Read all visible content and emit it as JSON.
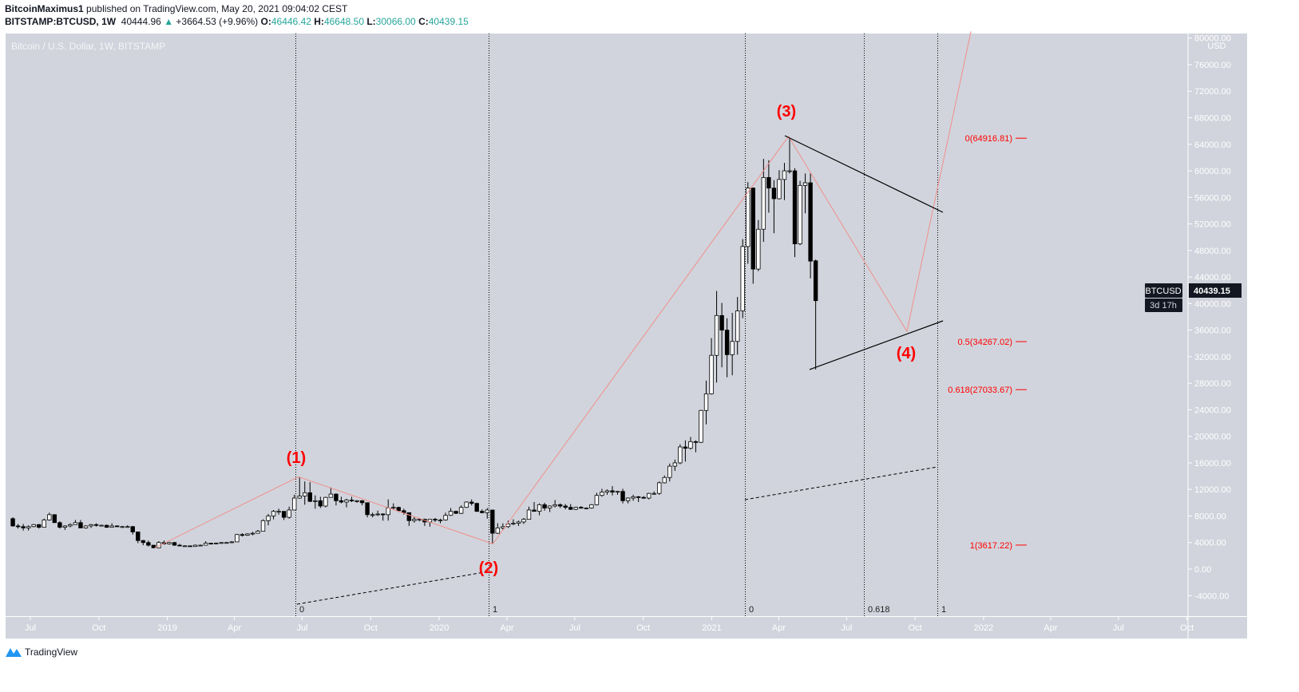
{
  "header": {
    "author": "BitcoinMaximus1",
    "published": "published on TradingView.com, May 20, 2021 09:04:02 CEST",
    "symbol": "BITSTAMP:BTCUSD, 1W",
    "last": "40444.96",
    "change": "+3664.53 (+9.96%)",
    "o_label": "O:",
    "o": "46446.42",
    "h_label": "H:",
    "h": "46648.50",
    "l_label": "L:",
    "l": "30066.00",
    "c_label": "C:",
    "c": "40439.15"
  },
  "footer": {
    "brand": "TradingView"
  },
  "chart_data": {
    "type": "candlestick",
    "title": "Bitcoin / U.S. Dollar, 1W, BITSTAMP",
    "interval": "1W",
    "currency_label": "USD",
    "ylim": [
      -6800,
      80000
    ],
    "y_ticks": [
      "80000.00",
      "76000.00",
      "72000.00",
      "68000.00",
      "64000.00",
      "60000.00",
      "56000.00",
      "52000.00",
      "48000.00",
      "44000.00",
      "40000.00",
      "36000.00",
      "32000.00",
      "28000.00",
      "24000.00",
      "20000.00",
      "16000.00",
      "12000.00",
      "8000.00",
      "4000.00",
      "0.00",
      "-4000.00"
    ],
    "x_ticks": [
      "Jul",
      "Oct",
      "2019",
      "Apr",
      "Jul",
      "Oct",
      "2020",
      "Apr",
      "Jul",
      "Oct",
      "2021",
      "Apr",
      "Jul",
      "Oct",
      "2022",
      "Apr",
      "Jul",
      "Oct"
    ],
    "colors": {
      "background": "#d1d4dc",
      "up_body": "#ffffff",
      "down_body": "#000000",
      "wave": "#f0908c",
      "label_red": "#ff0000",
      "price_tag": "#131722"
    },
    "candles_ohlc": [
      [
        7600,
        7800,
        6400,
        6500
      ],
      [
        6500,
        6800,
        6100,
        6400
      ],
      [
        6400,
        6800,
        5800,
        6200
      ],
      [
        6200,
        6600,
        5800,
        6400
      ],
      [
        6400,
        6800,
        6300,
        6700
      ],
      [
        6700,
        6800,
        6100,
        6300
      ],
      [
        6300,
        7600,
        6300,
        7400
      ],
      [
        7400,
        8500,
        7300,
        8200
      ],
      [
        8200,
        8200,
        7000,
        7000
      ],
      [
        7000,
        7200,
        6100,
        6300
      ],
      [
        6300,
        6600,
        5900,
        6500
      ],
      [
        6500,
        6900,
        6300,
        6700
      ],
      [
        6700,
        7400,
        6700,
        7000
      ],
      [
        7000,
        7400,
        6200,
        6200
      ],
      [
        6200,
        6600,
        6100,
        6500
      ],
      [
        6500,
        6800,
        6200,
        6700
      ],
      [
        6700,
        6900,
        6400,
        6600
      ],
      [
        6600,
        6700,
        6500,
        6600
      ],
      [
        6600,
        6700,
        6200,
        6300
      ],
      [
        6300,
        6900,
        6300,
        6500
      ],
      [
        6500,
        6600,
        6400,
        6400
      ],
      [
        6400,
        6500,
        6200,
        6400
      ],
      [
        6400,
        6600,
        6300,
        6400
      ],
      [
        6400,
        6500,
        5200,
        5600
      ],
      [
        5600,
        5600,
        3900,
        4300
      ],
      [
        4300,
        4400,
        3600,
        4000
      ],
      [
        4000,
        4300,
        3400,
        3600
      ],
      [
        3600,
        3600,
        3200,
        3200
      ],
      [
        3200,
        4200,
        3200,
        4000
      ],
      [
        4000,
        4300,
        3700,
        3800
      ],
      [
        3800,
        4100,
        3700,
        4000
      ],
      [
        4000,
        4100,
        3500,
        3600
      ],
      [
        3600,
        3800,
        3500,
        3500
      ],
      [
        3500,
        3600,
        3500,
        3500
      ],
      [
        3500,
        3500,
        3400,
        3400
      ],
      [
        3400,
        3700,
        3400,
        3600
      ],
      [
        3600,
        3700,
        3500,
        3600
      ],
      [
        3600,
        4200,
        3600,
        3900
      ],
      [
        3900,
        3900,
        3700,
        3800
      ],
      [
        3800,
        4000,
        3800,
        3900
      ],
      [
        3900,
        4000,
        3800,
        4000
      ],
      [
        4000,
        4100,
        3900,
        4000
      ],
      [
        4000,
        4200,
        3900,
        4100
      ],
      [
        4100,
        5300,
        4100,
        5200
      ],
      [
        5200,
        5400,
        4900,
        5100
      ],
      [
        5100,
        5400,
        5000,
        5300
      ],
      [
        5300,
        5600,
        5100,
        5400
      ],
      [
        5400,
        5900,
        5400,
        5700
      ],
      [
        5700,
        7500,
        5700,
        7300
      ],
      [
        7300,
        8300,
        6600,
        8000
      ],
      [
        8000,
        8900,
        7500,
        8700
      ],
      [
        8700,
        9100,
        8200,
        8700
      ],
      [
        8700,
        8700,
        7400,
        7800
      ],
      [
        7800,
        9400,
        7600,
        8900
      ],
      [
        8900,
        11200,
        8900,
        10700
      ],
      [
        10700,
        13900,
        10600,
        11000
      ],
      [
        11000,
        13200,
        9700,
        11500
      ],
      [
        11500,
        13100,
        10100,
        10200
      ],
      [
        10200,
        11100,
        9100,
        10300
      ],
      [
        10300,
        10900,
        9200,
        9500
      ],
      [
        9500,
        10900,
        9300,
        10800
      ],
      [
        10800,
        12300,
        10800,
        11300
      ],
      [
        11300,
        11400,
        9600,
        10300
      ],
      [
        10300,
        10900,
        9900,
        10100
      ],
      [
        10100,
        10600,
        9300,
        10400
      ],
      [
        10400,
        10900,
        10100,
        10300
      ],
      [
        10300,
        10400,
        10000,
        10300
      ],
      [
        10300,
        10400,
        9600,
        10000
      ],
      [
        10000,
        10000,
        7800,
        8200
      ],
      [
        8200,
        8500,
        7800,
        8200
      ],
      [
        8200,
        8800,
        8000,
        8300
      ],
      [
        8300,
        8400,
        7300,
        8200
      ],
      [
        8200,
        10500,
        7300,
        9200
      ],
      [
        9200,
        9900,
        8900,
        9300
      ],
      [
        9300,
        9400,
        8600,
        8800
      ],
      [
        8800,
        9100,
        8200,
        8500
      ],
      [
        8500,
        8500,
        6500,
        7300
      ],
      [
        7300,
        7900,
        7000,
        7500
      ],
      [
        7500,
        7700,
        7200,
        7500
      ],
      [
        7500,
        7600,
        6500,
        7100
      ],
      [
        7100,
        7500,
        6400,
        7500
      ],
      [
        7500,
        7700,
        7100,
        7400
      ],
      [
        7400,
        7600,
        6900,
        7400
      ],
      [
        7400,
        8500,
        7300,
        8100
      ],
      [
        8100,
        9200,
        8000,
        8700
      ],
      [
        8700,
        8800,
        8300,
        8400
      ],
      [
        8400,
        9600,
        8300,
        9300
      ],
      [
        9300,
        10200,
        9200,
        10100
      ],
      [
        10100,
        10500,
        9600,
        9900
      ],
      [
        9900,
        10000,
        8600,
        8700
      ],
      [
        8700,
        9000,
        8400,
        8500
      ],
      [
        8500,
        9200,
        7600,
        8900
      ],
      [
        8900,
        8900,
        3900,
        5400
      ],
      [
        5400,
        6900,
        5300,
        6200
      ],
      [
        6200,
        6900,
        5900,
        6400
      ],
      [
        6400,
        7300,
        6200,
        6800
      ],
      [
        6800,
        7500,
        6600,
        6900
      ],
      [
        6900,
        7300,
        6500,
        7100
      ],
      [
        7100,
        7700,
        6800,
        7500
      ],
      [
        7500,
        9400,
        7500,
        8900
      ],
      [
        8900,
        10100,
        8700,
        8700
      ],
      [
        8700,
        9900,
        8100,
        9700
      ],
      [
        9700,
        10000,
        8800,
        9200
      ],
      [
        9200,
        9600,
        8600,
        9500
      ],
      [
        9500,
        10400,
        9300,
        9700
      ],
      [
        9700,
        9900,
        9200,
        9500
      ],
      [
        9500,
        9800,
        9000,
        9300
      ],
      [
        9300,
        9800,
        8900,
        9000
      ],
      [
        9000,
        9400,
        8900,
        9300
      ],
      [
        9300,
        9500,
        9100,
        9200
      ],
      [
        9200,
        9300,
        9000,
        9200
      ],
      [
        9200,
        9800,
        9100,
        9700
      ],
      [
        9700,
        11500,
        9600,
        11100
      ],
      [
        11100,
        12100,
        10900,
        11600
      ],
      [
        11600,
        12000,
        11200,
        11800
      ],
      [
        11800,
        12500,
        11100,
        11600
      ],
      [
        11600,
        11800,
        11200,
        11700
      ],
      [
        11700,
        12100,
        9900,
        10300
      ],
      [
        10300,
        10800,
        9900,
        10700
      ],
      [
        10700,
        11200,
        10300,
        10900
      ],
      [
        10900,
        11000,
        10100,
        10800
      ],
      [
        10800,
        11000,
        10600,
        10700
      ],
      [
        10700,
        11500,
        10500,
        11400
      ],
      [
        11400,
        11700,
        11200,
        11400
      ],
      [
        11400,
        13200,
        11200,
        13000
      ],
      [
        13000,
        14100,
        12900,
        13800
      ],
      [
        13800,
        15900,
        13200,
        15500
      ],
      [
        15500,
        16500,
        14800,
        16000
      ],
      [
        16000,
        18800,
        15800,
        18400
      ],
      [
        18400,
        19400,
        16200,
        18200
      ],
      [
        18200,
        19900,
        18000,
        19200
      ],
      [
        19200,
        19400,
        17600,
        19100
      ],
      [
        19100,
        24000,
        19000,
        23900
      ],
      [
        23900,
        28400,
        21800,
        26400
      ],
      [
        26400,
        34800,
        26300,
        32200
      ],
      [
        32200,
        41900,
        28100,
        38200
      ],
      [
        38200,
        40100,
        30400,
        36000
      ],
      [
        36000,
        37800,
        28900,
        32300
      ],
      [
        32300,
        38600,
        29200,
        34300
      ],
      [
        34300,
        41000,
        32300,
        38900
      ],
      [
        38900,
        49700,
        37800,
        48600
      ],
      [
        48600,
        58300,
        46000,
        57400
      ],
      [
        57400,
        57500,
        43000,
        45200
      ],
      [
        45200,
        52600,
        44900,
        51200
      ],
      [
        51200,
        61800,
        49300,
        59000
      ],
      [
        59000,
        61600,
        53700,
        57400
      ],
      [
        57400,
        58600,
        50600,
        55800
      ],
      [
        55800,
        60100,
        55700,
        58700
      ],
      [
        58700,
        61200,
        55600,
        60000
      ],
      [
        60000,
        64900,
        59600,
        60000
      ],
      [
        60000,
        60400,
        47000,
        49000
      ],
      [
        49000,
        58500,
        48800,
        57800
      ],
      [
        57800,
        59600,
        53600,
        58200
      ],
      [
        58200,
        59600,
        43800,
        46400
      ],
      [
        46446.42,
        46648.5,
        30066,
        40439.15
      ]
    ],
    "last_price": {
      "symbol": "BTCUSD",
      "price": "40439.15",
      "countdown": "3d 17h"
    },
    "wave_labels": [
      "(1)",
      "(2)",
      "(3)",
      "(4)"
    ],
    "fib_retracement_levels": [
      {
        "label": "0(64916.81)",
        "price": 64916.81
      },
      {
        "label": "0.5(34267.02)",
        "price": 34267.02
      },
      {
        "label": "0.618(27033.67)",
        "price": 27033.67
      },
      {
        "label": "1(3617.22)",
        "price": 3617.22
      }
    ],
    "fib_time_labels": [
      "0",
      "1",
      "0",
      "0.618",
      "1"
    ]
  }
}
